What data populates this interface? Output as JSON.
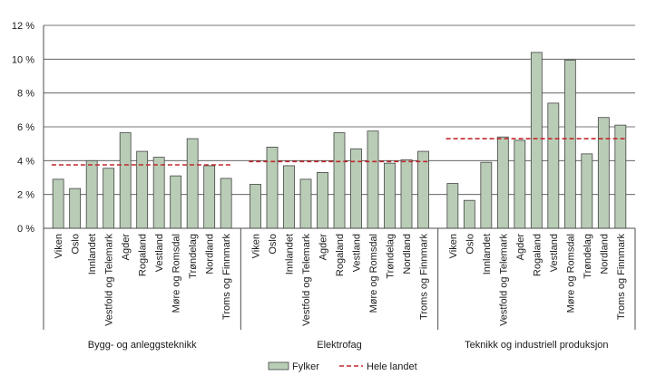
{
  "chart_data": {
    "type": "bar",
    "title": "",
    "xlabel": "",
    "ylabel": "",
    "ylim": [
      0,
      12
    ],
    "yticks": [
      0,
      2,
      4,
      6,
      8,
      10,
      12
    ],
    "ytick_suffix": " %",
    "grid": true,
    "legend": {
      "placement": "bottom-center",
      "bars_label": "Fylker",
      "line_label": "Hele landet",
      "bar_color": "#b9cdb6",
      "line_color": "#c0282d"
    },
    "groups": [
      {
        "name": "Bygg- og anleggsteknikk",
        "categories": [
          "Viken",
          "Oslo",
          "Innlandet",
          "Vestfold og Telemark",
          "Agder",
          "Rogaland",
          "Vestland",
          "Møre og Romsdal",
          "Trøndelag",
          "Nordland",
          "Troms og Finnmark"
        ],
        "values": [
          2.9,
          2.35,
          4.0,
          3.55,
          5.65,
          4.55,
          4.2,
          3.1,
          5.3,
          3.7,
          2.95
        ],
        "national": 3.75
      },
      {
        "name": "Elektrofag",
        "categories": [
          "Viken",
          "Oslo",
          "Innlandet",
          "Vestfold og Telemark",
          "Agder",
          "Rogaland",
          "Vestland",
          "Møre og Romsdal",
          "Trøndelag",
          "Nordland",
          "Troms og Finnmark"
        ],
        "values": [
          2.6,
          4.8,
          3.7,
          2.9,
          3.3,
          5.65,
          4.7,
          5.75,
          3.85,
          4.05,
          4.55
        ],
        "national": 3.95
      },
      {
        "name": "Teknikk og industriell produksjon",
        "categories": [
          "Viken",
          "Oslo",
          "Innlandet",
          "Vestfold og Telemark",
          "Agder",
          "Rogaland",
          "Vestland",
          "Møre og Romsdal",
          "Trøndelag",
          "Nordland",
          "Troms og Finnmark"
        ],
        "values": [
          2.65,
          1.65,
          3.9,
          5.4,
          5.2,
          10.4,
          7.4,
          9.95,
          4.4,
          6.55,
          6.1
        ],
        "national": 5.3
      }
    ]
  }
}
